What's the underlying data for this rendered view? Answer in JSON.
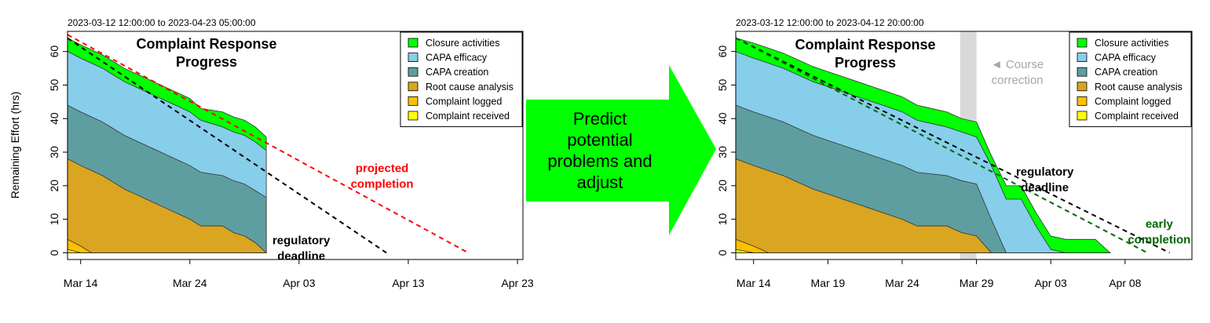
{
  "arrow": {
    "lines": [
      "Predict",
      "potential",
      "problems and",
      "adjust"
    ],
    "color": "#00ff00"
  },
  "colors": {
    "closure": "#00ff00",
    "capa_efficacy": "#87ceeb",
    "capa_creation": "#5f9ea0",
    "root_cause": "#daa520",
    "complaint_logged": "#ffc000",
    "complaint_received": "#ffff00",
    "projected": "#ff0000",
    "deadline": "#000000",
    "early": "#006400",
    "course_band": "#d9d9d9"
  },
  "chart_data": [
    {
      "type": "area",
      "title": "Complaint Response Progress",
      "subtitle": "2023-03-12 12:00:00 to 2023-04-23 05:00:00",
      "xlabel": "",
      "ylabel": "Remaining Effort (hrs)",
      "x_ticks": [
        "Mar 14",
        "Mar 24",
        "Apr 03",
        "Apr 13",
        "Apr 23"
      ],
      "x_tick_days": [
        2,
        12,
        22,
        32,
        42
      ],
      "xlim_days": [
        0.8,
        42.5
      ],
      "ylim": [
        -2,
        66
      ],
      "y_ticks": [
        0,
        10,
        20,
        30,
        40,
        50,
        60
      ],
      "grid": false,
      "legend_position": "top-right",
      "legend": [
        "Closure activities",
        "CAPA efficacy",
        "CAPA creation",
        "Root cause analysis",
        "Complaint logged",
        "Complaint received"
      ],
      "x_days": [
        0.8,
        2,
        3,
        4,
        5,
        6,
        7,
        8,
        9,
        10,
        11,
        12,
        13,
        14,
        15,
        16,
        17,
        18,
        19
      ],
      "series": [
        {
          "name": "Complaint received",
          "values": [
            1,
            0,
            0,
            0,
            0,
            0,
            0,
            0,
            0,
            0,
            0,
            0,
            0,
            0,
            0,
            0,
            0,
            0,
            0
          ]
        },
        {
          "name": "Complaint logged",
          "values": [
            4,
            2,
            0,
            0,
            0,
            0,
            0,
            0,
            0,
            0,
            0,
            0,
            0,
            0,
            0,
            0,
            0,
            0,
            0
          ]
        },
        {
          "name": "Root cause analysis",
          "values": [
            28,
            26,
            24.5,
            23,
            21,
            19,
            17.5,
            16,
            14.5,
            13,
            11.5,
            10,
            8,
            8,
            8,
            6,
            5,
            3,
            0
          ]
        },
        {
          "name": "CAPA creation",
          "values": [
            44,
            42,
            40.5,
            39,
            37,
            35,
            33.5,
            32,
            30.5,
            29,
            27.5,
            26,
            24,
            23.5,
            23,
            21.5,
            20.5,
            18.5,
            16.5
          ]
        },
        {
          "name": "CAPA efficacy",
          "values": [
            60,
            58,
            56.5,
            55,
            53,
            51,
            49.5,
            48,
            46.5,
            45,
            43.5,
            42,
            39.5,
            38.5,
            37.5,
            36,
            35,
            33,
            30.5
          ]
        },
        {
          "name": "Closure activities",
          "values": [
            64,
            62,
            60.5,
            59,
            57,
            55,
            53.5,
            52,
            50.5,
            49,
            47.5,
            46,
            43,
            42.5,
            42,
            40.5,
            39.5,
            37.5,
            34.5
          ]
        }
      ],
      "lines": [
        {
          "name": "projected completion",
          "style": "dashed",
          "points": [
            [
              0.8,
              65
            ],
            [
              37.5,
              0
            ]
          ]
        },
        {
          "name": "regulatory deadline",
          "style": "dashed",
          "points": [
            [
              0.8,
              64
            ],
            [
              30,
              0
            ]
          ]
        }
      ],
      "annotations": [
        {
          "lines": [
            "projected",
            "completion"
          ],
          "x": 29.6,
          "y": 24,
          "color": "red"
        },
        {
          "lines": [
            "regulatory",
            "deadline"
          ],
          "x": 22.2,
          "y": 2.5,
          "color": "black"
        }
      ]
    },
    {
      "type": "area",
      "title": "Complaint Response Progress",
      "subtitle": "2023-03-12 12:00:00 to 2023-04-12 20:00:00",
      "xlabel": "",
      "ylabel": "Remaining Effort (hrs)",
      "x_ticks": [
        "Mar 14",
        "Mar 19",
        "Mar 24",
        "Mar 29",
        "Apr 03",
        "Apr 08"
      ],
      "x_tick_days": [
        2,
        7,
        12,
        17,
        22,
        27
      ],
      "xlim_days": [
        0.8,
        31.5
      ],
      "ylim": [
        -2,
        66
      ],
      "y_ticks": [
        0,
        10,
        20,
        30,
        40,
        50,
        60
      ],
      "grid": false,
      "legend_position": "top-right",
      "legend": [
        "Closure activities",
        "CAPA efficacy",
        "CAPA creation",
        "Root cause analysis",
        "Complaint logged",
        "Complaint received"
      ],
      "x_days": [
        0.8,
        2,
        3,
        4,
        5,
        6,
        7,
        8,
        9,
        10,
        11,
        12,
        13,
        14,
        15,
        16,
        17,
        18,
        19,
        20,
        21,
        22,
        23,
        24,
        25,
        26
      ],
      "series": [
        {
          "name": "Complaint received",
          "values": [
            1,
            0,
            0,
            0,
            0,
            0,
            0,
            0,
            0,
            0,
            0,
            0,
            0,
            0,
            0,
            0,
            0,
            0,
            0,
            0,
            0,
            0,
            0,
            0,
            0,
            0
          ]
        },
        {
          "name": "Complaint logged",
          "values": [
            4,
            2,
            0,
            0,
            0,
            0,
            0,
            0,
            0,
            0,
            0,
            0,
            0,
            0,
            0,
            0,
            0,
            0,
            0,
            0,
            0,
            0,
            0,
            0,
            0,
            0
          ]
        },
        {
          "name": "Root cause analysis",
          "values": [
            28,
            26,
            24.5,
            23,
            21,
            19,
            17.5,
            16,
            14.5,
            13,
            11.5,
            10,
            8,
            8,
            8,
            6,
            5,
            0,
            0,
            0,
            0,
            0,
            0,
            0,
            0,
            0
          ]
        },
        {
          "name": "CAPA creation",
          "values": [
            44,
            42,
            40.5,
            39,
            37,
            35,
            33.5,
            32,
            30.5,
            29,
            27.5,
            26,
            24,
            23.5,
            23,
            21.5,
            20.5,
            10,
            0,
            0,
            0,
            0,
            0,
            0,
            0,
            0
          ]
        },
        {
          "name": "CAPA efficacy",
          "values": [
            60,
            58,
            56.5,
            55,
            53,
            51,
            49.5,
            48,
            46.5,
            45,
            43.5,
            42,
            39.5,
            38.5,
            37.5,
            36,
            34.5,
            26,
            16,
            16,
            8,
            1,
            0,
            0,
            0,
            0
          ]
        },
        {
          "name": "Closure activities",
          "values": [
            64,
            62.5,
            61,
            59.5,
            57.5,
            55.5,
            54,
            52.5,
            51,
            49.5,
            48,
            46.5,
            44,
            43,
            42,
            40,
            39,
            29,
            20,
            20,
            12,
            5,
            4,
            4,
            4,
            0
          ]
        }
      ],
      "lines": [
        {
          "name": "regulatory deadline",
          "style": "dashed",
          "points": [
            [
              0.8,
              64
            ],
            [
              30,
              0
            ]
          ]
        },
        {
          "name": "early completion",
          "style": "dashed",
          "points": [
            [
              0.8,
              64
            ],
            [
              28.5,
              0
            ]
          ]
        }
      ],
      "highlight_band": {
        "label": [
          "Course",
          "correction"
        ],
        "x_from": 15.9,
        "x_to": 17.0
      },
      "annotations": [
        {
          "lines": [
            "regulatory",
            "deadline"
          ],
          "x": 21.6,
          "y": 23,
          "color": "black"
        },
        {
          "lines": [
            "early",
            "completion"
          ],
          "x": 29.3,
          "y": 7.5,
          "color": "green"
        }
      ]
    }
  ]
}
